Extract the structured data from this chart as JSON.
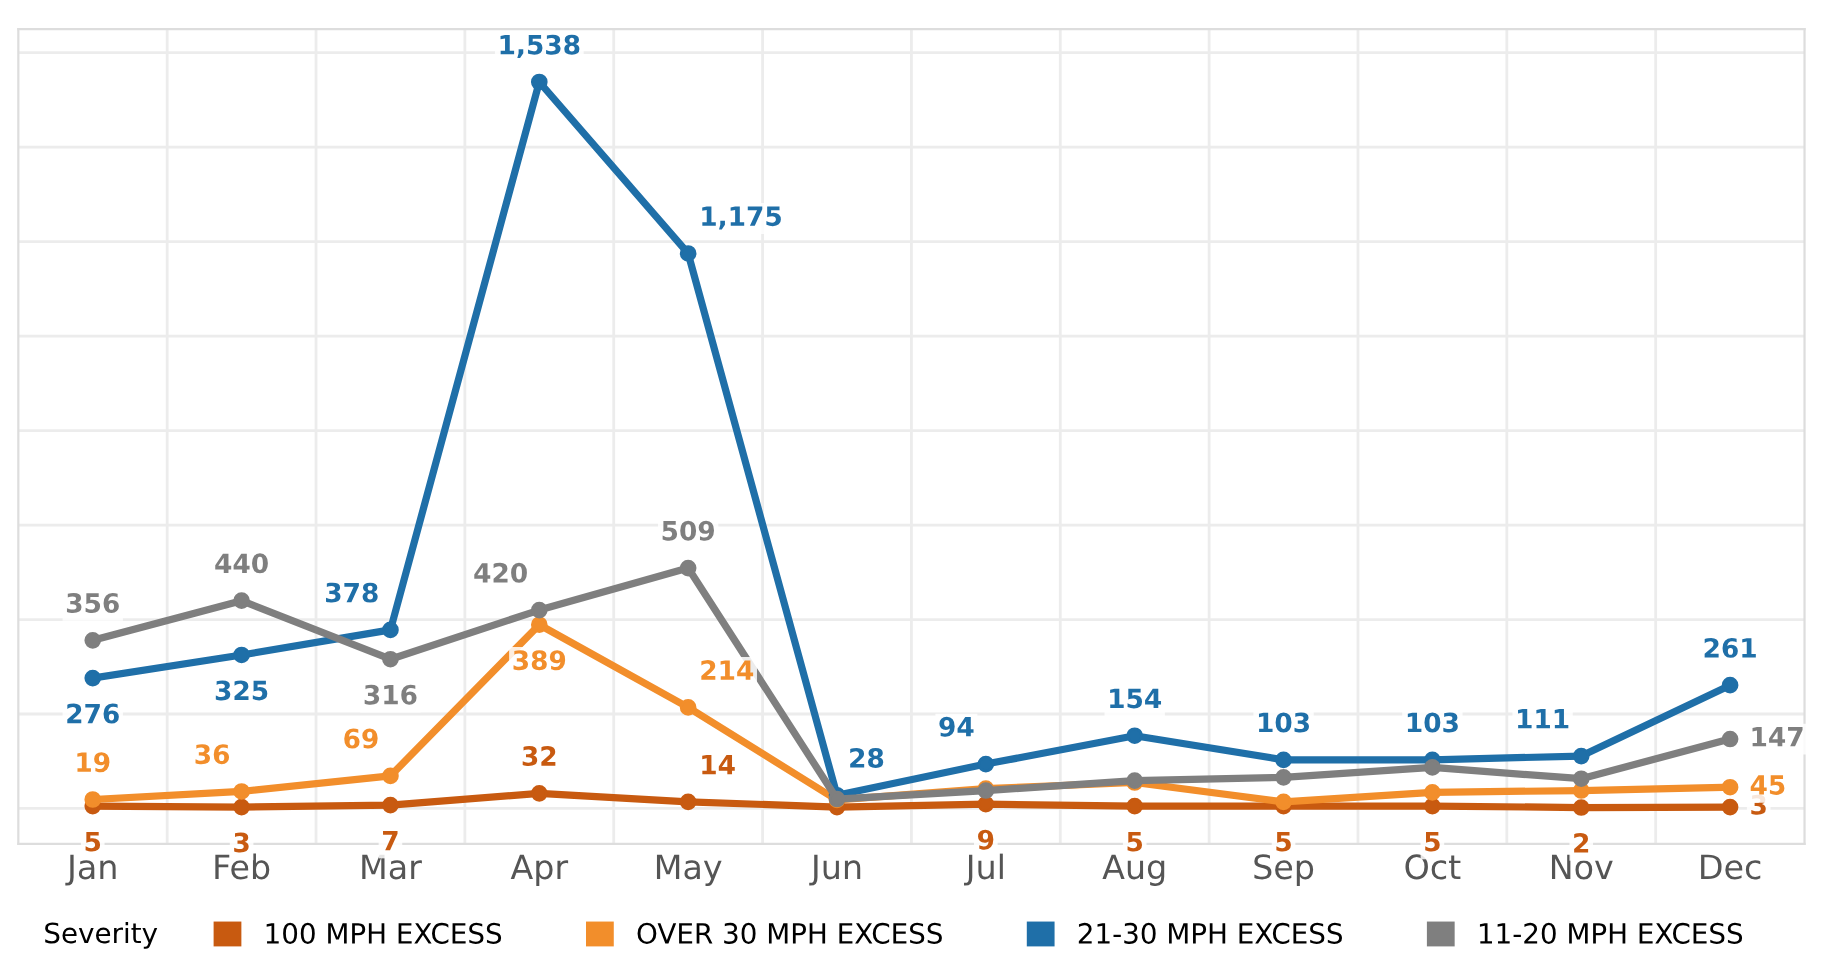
{
  "chart_data": {
    "type": "line",
    "categories": [
      "Jan",
      "Feb",
      "Mar",
      "Apr",
      "May",
      "Jun",
      "Jul",
      "Aug",
      "Sep",
      "Oct",
      "Nov",
      "Dec"
    ],
    "series": [
      {
        "name": "100 MPH EXCESS",
        "color": "#c85a10",
        "values": [
          5,
          3,
          7,
          32,
          14,
          3,
          9,
          5,
          5,
          5,
          2,
          3
        ],
        "value_labels": [
          "5",
          "3",
          "7",
          "32",
          "14",
          null,
          "9",
          "5",
          "5",
          "5",
          "2",
          "3"
        ]
      },
      {
        "name": "OVER 30 MPH EXCESS",
        "color": "#f28e2b",
        "values": [
          19,
          36,
          69,
          389,
          214,
          18,
          42,
          55,
          14,
          34,
          38,
          45
        ],
        "value_labels": [
          "19",
          "36",
          "69",
          "389",
          "214",
          null,
          null,
          null,
          null,
          null,
          null,
          "45"
        ]
      },
      {
        "name": "21-30 MPH EXCESS",
        "color": "#1f6fa8",
        "values": [
          276,
          325,
          378,
          1538,
          1175,
          28,
          94,
          154,
          103,
          103,
          111,
          261
        ],
        "value_labels": [
          "276",
          "325",
          "378",
          "1,538",
          "1,175",
          "28",
          "94",
          "154",
          "103",
          "103",
          "111",
          "261"
        ]
      },
      {
        "name": "11-20 MPH EXCESS",
        "color": "#7f7f7f",
        "values": [
          356,
          440,
          316,
          420,
          509,
          20,
          38,
          59,
          66,
          87,
          63,
          147
        ],
        "value_labels": [
          "356",
          "440",
          "316",
          "420",
          "509",
          null,
          null,
          null,
          null,
          null,
          null,
          "147"
        ]
      }
    ],
    "ylim": [
      -75,
      1650
    ],
    "yticks": [
      {
        "value": 0,
        "label": null
      },
      {
        "value": 200,
        "label": null
      },
      {
        "value": 400,
        "label": null
      },
      {
        "value": 600,
        "label": null
      },
      {
        "value": 800,
        "label": null
      },
      {
        "value": 1000,
        "label": null
      },
      {
        "value": 1200,
        "label": null
      },
      {
        "value": 1400,
        "label": null
      },
      {
        "value": 1600,
        "label": null
      }
    ],
    "tick_labels": "x",
    "grid": true,
    "marker": "circle",
    "line_style": "solid",
    "legend": "bottom",
    "legend_title": "Severity"
  }
}
